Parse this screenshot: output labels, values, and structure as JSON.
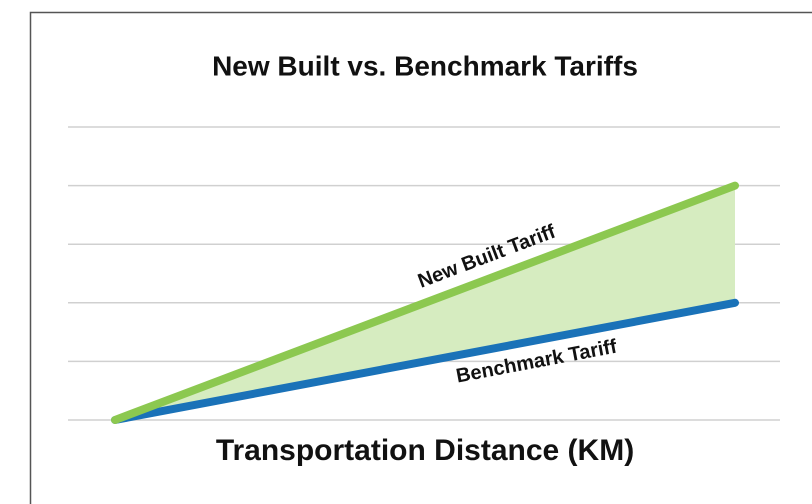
{
  "chart_data": {
    "type": "line",
    "title": "New Built vs. Benchmark Tariffs",
    "x_label": "Transportation Distance (KM)",
    "x": [
      0,
      1
    ],
    "xlim": [
      0,
      1
    ],
    "series": [
      {
        "name": "New Built Tariff",
        "color": "#8cc850",
        "values": [
          0,
          4
        ]
      },
      {
        "name": "Benchmark Tariff",
        "color": "#1a72b8",
        "values": [
          0,
          2
        ]
      }
    ],
    "fill_between": "#d6ecc0",
    "ylim": [
      0,
      5
    ],
    "yticks": [
      0,
      1,
      2,
      3,
      4,
      5
    ],
    "grid": true
  }
}
